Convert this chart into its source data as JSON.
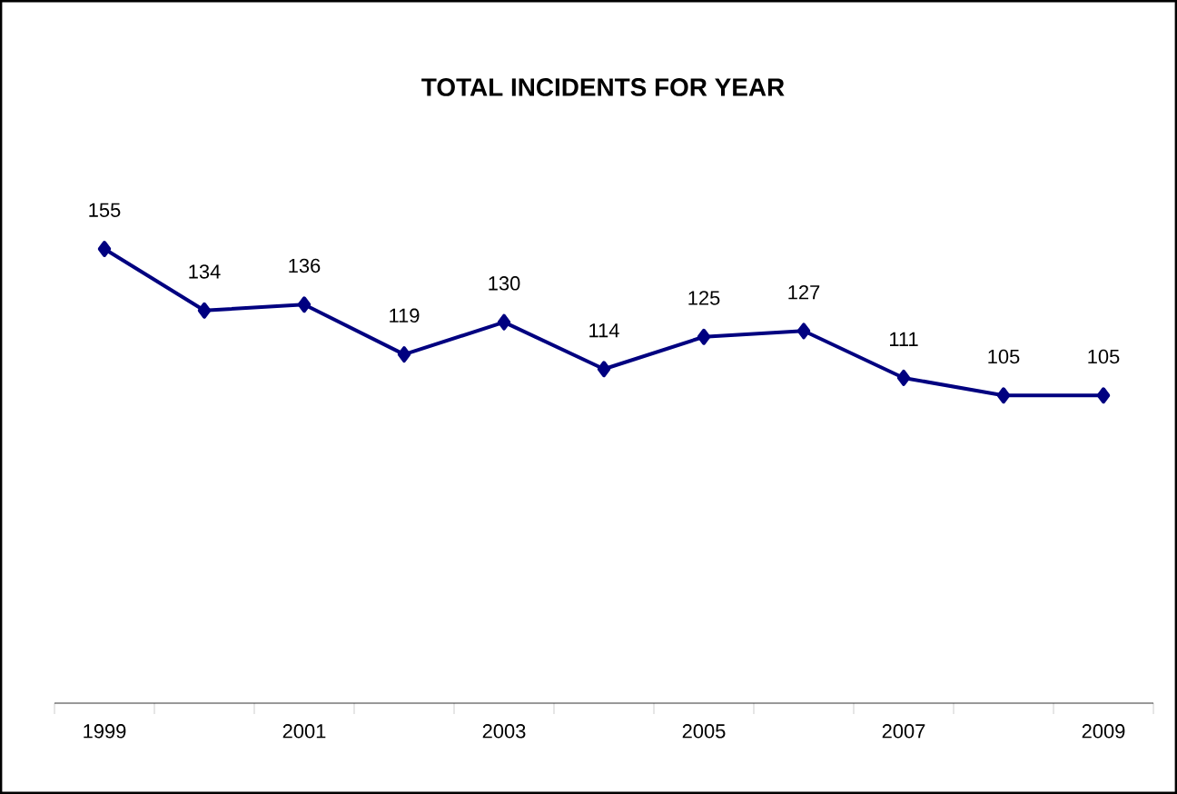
{
  "chart_data": {
    "type": "line",
    "title": "TOTAL INCIDENTS FOR YEAR",
    "categories": [
      "1999",
      null,
      "2001",
      null,
      "2003",
      null,
      "2005",
      null,
      "2007",
      null,
      "2009"
    ],
    "values": [
      155,
      134,
      136,
      119,
      130,
      114,
      125,
      127,
      111,
      105,
      105
    ],
    "color": "#000080",
    "marker": "diamond",
    "line_style": "solid",
    "data_labels": true,
    "grid": false
  }
}
